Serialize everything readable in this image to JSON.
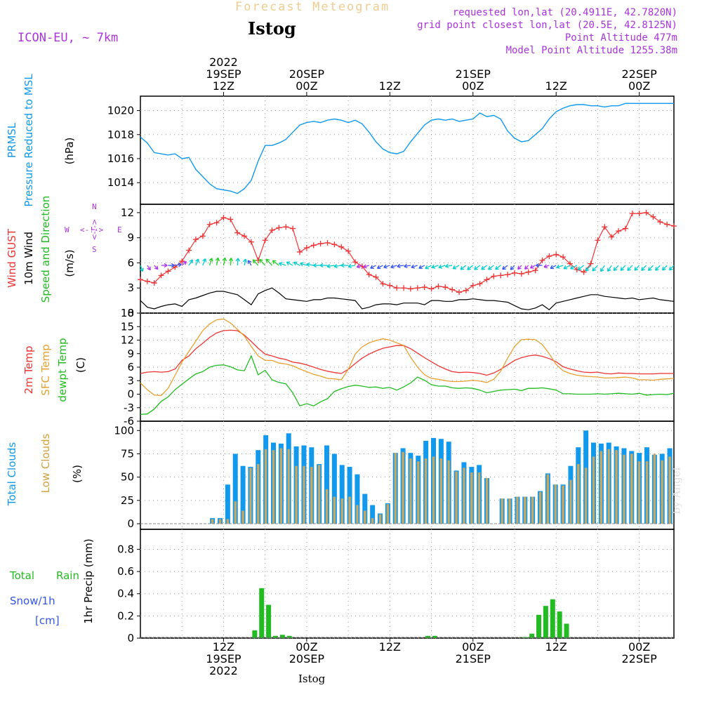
{
  "header": {
    "title": "Forecast Meteogram",
    "location": "Istog",
    "model": "ICON-EU, ~ 7km",
    "requested": "requested lon,lat (20.4911E, 42.7820N)",
    "grid_point": "grid point closest lon,lat (20.5E, 42.8125N)",
    "point_altitude": "Point Altitude 477m",
    "model_altitude": "Model Point Altitude 1255.38m",
    "footer_location": "Istog",
    "watermark": "by Angel"
  },
  "time_axis": {
    "top_labels": [
      {
        "hour": 12,
        "lines": [
          "2022",
          "19SEP",
          "12Z"
        ]
      },
      {
        "hour": 24,
        "lines": [
          "20SEP",
          "00Z"
        ]
      },
      {
        "hour": 36,
        "lines": [
          "12Z"
        ]
      },
      {
        "hour": 48,
        "lines": [
          "21SEP",
          "00Z"
        ]
      },
      {
        "hour": 60,
        "lines": [
          "12Z"
        ]
      },
      {
        "hour": 72,
        "lines": [
          "22SEP",
          "00Z"
        ]
      }
    ],
    "bottom_labels": [
      {
        "hour": 12,
        "lines": [
          "12Z",
          "19SEP",
          "2022"
        ]
      },
      {
        "hour": 24,
        "lines": [
          "00Z",
          "20SEP"
        ]
      },
      {
        "hour": 36,
        "lines": [
          "12Z"
        ]
      },
      {
        "hour": 48,
        "lines": [
          "00Z",
          "21SEP"
        ]
      },
      {
        "hour": 60,
        "lines": [
          "12Z"
        ]
      },
      {
        "hour": 72,
        "lines": [
          "00Z",
          "22SEP"
        ]
      }
    ]
  },
  "panel_labels": {
    "pressure": [
      {
        "text": "PRMSL",
        "color": "#1199ee"
      },
      {
        "text": "Pressure Reduced to MSL",
        "color": "#1199ee"
      },
      {
        "text": "(hPa)",
        "color": "#000000"
      }
    ],
    "wind": [
      {
        "text": "Wind GUST",
        "color": "#ee3333"
      },
      {
        "text": "10m Wind",
        "color": "#000000"
      },
      {
        "text": "Speed and Direction",
        "color": "#22bb22"
      },
      {
        "text": "(m/s)",
        "color": "#000000"
      }
    ],
    "compass": {
      "w": "W",
      "e": "E",
      "n": "N",
      "s": "S",
      "arrows": "<-!->",
      "vert": "<-!->"
    },
    "temp": [
      {
        "text": "2m Temp",
        "color": "#ee3333"
      },
      {
        "text": "SFC Temp",
        "color": "#e8a030"
      },
      {
        "text": "dewpt Temp",
        "color": "#22bb22"
      },
      {
        "text": "(C)",
        "color": "#000000"
      }
    ],
    "clouds": [
      {
        "text": "Total Clouds",
        "color": "#1199ee"
      },
      {
        "text": "Low Clouds",
        "color": "#d4a040"
      },
      {
        "text": "(%)",
        "color": "#000000"
      }
    ],
    "precip": {
      "ylabel": "1hr Precip (mm)",
      "total": "Total",
      "rain": "Rain",
      "snow": "Snow/1h",
      "cm": "[cm]"
    }
  },
  "colors": {
    "pressure": "#1199ee",
    "gust": "#ee3333",
    "wind": "#000000",
    "t2m": "#ee3333",
    "tsfc": "#e8a030",
    "dewpt": "#22bb22",
    "total_clouds": "#1199ee",
    "low_clouds": "#c8a860",
    "rain": "#22bb22"
  },
  "chart_data": [
    {
      "type": "line",
      "panel": "pressure",
      "x": [
        0,
        1,
        2,
        3,
        4,
        5,
        6,
        7,
        8,
        9,
        10,
        11,
        12,
        13,
        14,
        15,
        16,
        17,
        18,
        19,
        20,
        21,
        22,
        23,
        24,
        25,
        26,
        27,
        28,
        29,
        30,
        31,
        32,
        33,
        34,
        35,
        36,
        37,
        38,
        39,
        40,
        41,
        42,
        43,
        44,
        45,
        46,
        47,
        48,
        49,
        50,
        51,
        52,
        53,
        54,
        55,
        56,
        57,
        58,
        59,
        60,
        61,
        62,
        63,
        64,
        65,
        66,
        67,
        68,
        69,
        70,
        71,
        72,
        73,
        74,
        75,
        76,
        77
      ],
      "y": [
        1017.8,
        1017.3,
        1016.5,
        1016.4,
        1016.3,
        1016.4,
        1016.0,
        1016.1,
        1015.1,
        1014.5,
        1013.9,
        1013.5,
        1013.4,
        1013.3,
        1013.1,
        1013.5,
        1014.2,
        1015.8,
        1017.1,
        1017.1,
        1017.3,
        1017.6,
        1018.2,
        1018.8,
        1019.0,
        1019.1,
        1019.0,
        1019.2,
        1019.3,
        1019.2,
        1019.0,
        1019.2,
        1018.9,
        1018.2,
        1017.4,
        1016.8,
        1016.5,
        1016.4,
        1016.6,
        1017.4,
        1018.1,
        1018.8,
        1019.2,
        1019.3,
        1019.2,
        1019.3,
        1019.1,
        1019.2,
        1019.3,
        1019.8,
        1019.5,
        1019.6,
        1019.3,
        1018.3,
        1017.7,
        1017.4,
        1017.5,
        1018.0,
        1018.5,
        1019.3,
        1019.9,
        1020.2,
        1020.4,
        1020.5,
        1020.5,
        1020.4,
        1020.4,
        1020.3,
        1020.4,
        1020.4,
        1020.6,
        1020.6,
        1020.6,
        1020.6,
        1020.6,
        1020.6,
        1020.6,
        1020.6
      ],
      "xlim": [
        0,
        77
      ],
      "ylim": [
        1012.2,
        1021.2
      ],
      "yticks": [
        1014,
        1016,
        1018,
        1020
      ]
    },
    {
      "type": "line",
      "panel": "wind",
      "series": [
        {
          "name": "Wind GUST",
          "values": [
            4.0,
            3.8,
            3.6,
            4.5,
            5.0,
            5.5,
            6.2,
            7.5,
            8.8,
            9.2,
            10.6,
            10.8,
            11.4,
            11.2,
            9.6,
            9.2,
            8.5,
            6.3,
            8.7,
            9.9,
            10.2,
            10.3,
            10.1,
            7.3,
            7.8,
            8.1,
            8.3,
            8.4,
            8.2,
            7.9,
            7.4,
            6.1,
            5.6,
            4.6,
            4.3,
            3.5,
            3.3,
            3.0,
            3.0,
            2.9,
            3.0,
            3.1,
            2.9,
            3.2,
            3.1,
            2.8,
            2.5,
            2.7,
            3.3,
            3.5,
            4.0,
            4.4,
            4.5,
            4.6,
            4.8,
            4.7,
            4.9,
            5.1,
            6.3,
            6.8,
            7.0,
            6.7,
            5.9,
            5.2,
            4.9,
            5.9,
            8.7,
            10.3,
            9.1,
            9.8,
            10.1,
            11.9,
            11.9,
            12.0,
            11.5,
            10.9,
            10.6,
            10.4
          ]
        },
        {
          "name": "10m Wind",
          "values": [
            1.5,
            0.7,
            0.5,
            0.8,
            1.0,
            1.1,
            0.8,
            1.6,
            1.8,
            2.1,
            2.4,
            2.6,
            2.6,
            2.4,
            2.2,
            1.6,
            1.0,
            2.3,
            2.7,
            3.0,
            2.4,
            1.7,
            1.6,
            1.5,
            1.4,
            1.6,
            1.6,
            1.8,
            1.8,
            1.7,
            1.6,
            1.5,
            0.5,
            0.7,
            1.0,
            1.1,
            1.1,
            1.0,
            1.2,
            1.2,
            1.2,
            1.0,
            1.5,
            1.5,
            1.4,
            1.4,
            1.6,
            1.6,
            1.7,
            1.6,
            1.5,
            1.5,
            1.4,
            1.3,
            0.9,
            0.5,
            0.4,
            0.6,
            1.0,
            0.4,
            1.2,
            1.4,
            1.6,
            1.8,
            2.0,
            2.2,
            2.2,
            2.0,
            1.9,
            1.8,
            1.7,
            1.8,
            1.6,
            1.7,
            1.8,
            1.6,
            1.5,
            1.4
          ]
        }
      ],
      "x_start": 0,
      "x_step": 1,
      "xlim": [
        0,
        77
      ],
      "ylim": [
        0,
        13
      ],
      "yticks": [
        0,
        3,
        6,
        9,
        12
      ],
      "arrow_dirs_deg": [
        160,
        150,
        140,
        90,
        90,
        80,
        45,
        30,
        20,
        20,
        15,
        10,
        10,
        5,
        5,
        10,
        -30,
        -40,
        -40,
        -40,
        -50,
        -70,
        -60,
        -60,
        -70,
        -80,
        -90,
        -90,
        -100,
        -100,
        -90,
        -100,
        -110,
        -110,
        -120,
        -120,
        -110,
        -110,
        -100,
        -100,
        -110,
        -120,
        -120,
        -110,
        -110,
        -100,
        -120,
        -130,
        -130,
        -130,
        -130,
        -130,
        -130,
        -130,
        -140,
        -140,
        -140,
        -120,
        -90,
        -110,
        -120,
        -110,
        -120,
        -120,
        -130,
        -140,
        -140,
        -150,
        -150,
        -140,
        -140,
        -140,
        -140,
        -140,
        -140,
        -140,
        -140,
        -140
      ]
    },
    {
      "type": "line",
      "panel": "temperature",
      "series": [
        {
          "name": "2m Temp",
          "values": [
            4.6,
            4.9,
            5.0,
            4.9,
            5.0,
            5.6,
            7.5,
            8.5,
            10.1,
            11.3,
            12.6,
            13.6,
            14.1,
            14.2,
            14.1,
            13.1,
            11.7,
            10.2,
            8.9,
            8.5,
            8.0,
            7.7,
            7.1,
            6.9,
            6.5,
            6.0,
            5.5,
            5.1,
            4.8,
            4.6,
            5.5,
            6.8,
            8.0,
            8.9,
            9.6,
            10.2,
            10.5,
            10.8,
            10.8,
            10.1,
            9.1,
            8.1,
            7.2,
            6.3,
            5.6,
            5.0,
            4.8,
            4.9,
            4.8,
            4.6,
            4.2,
            4.7,
            5.5,
            6.5,
            7.5,
            8.1,
            8.5,
            8.7,
            8.4,
            7.9,
            7.2,
            6.1,
            5.6,
            5.2,
            4.9,
            4.8,
            4.9,
            4.6,
            4.5,
            4.7,
            4.6,
            4.6,
            4.5,
            4.5,
            4.5,
            4.6,
            4.6,
            4.6
          ]
        },
        {
          "name": "SFC Temp",
          "values": [
            2.5,
            1.0,
            -0.2,
            -0.3,
            1.3,
            4.2,
            7.1,
            9.5,
            11.8,
            14.1,
            15.6,
            16.5,
            16.7,
            15.8,
            14.4,
            12.9,
            10.6,
            8.5,
            7.5,
            7.5,
            6.9,
            6.7,
            6.3,
            5.6,
            5.0,
            4.4,
            4.0,
            3.5,
            3.4,
            3.2,
            5.5,
            8.9,
            10.5,
            11.4,
            11.9,
            12.3,
            12.0,
            11.4,
            10.8,
            8.2,
            6.0,
            4.3,
            3.5,
            3.3,
            3.0,
            2.8,
            2.8,
            2.9,
            3.1,
            2.9,
            2.6,
            3.3,
            5.1,
            8.0,
            10.6,
            12.1,
            12.2,
            12.1,
            11.0,
            9.0,
            6.6,
            5.2,
            4.6,
            4.2,
            4.0,
            3.9,
            3.8,
            3.6,
            3.6,
            3.7,
            3.8,
            3.6,
            3.2,
            3.2,
            3.1,
            3.3,
            3.4,
            3.5
          ]
        },
        {
          "name": "dewpt Temp",
          "values": [
            -4.5,
            -4.4,
            -3.3,
            -1.6,
            -0.6,
            1.0,
            2.2,
            3.4,
            4.5,
            5.0,
            6.0,
            6.4,
            6.5,
            6.1,
            5.4,
            5.2,
            8.5,
            4.3,
            5.3,
            3.2,
            2.6,
            2.3,
            0.3,
            -2.6,
            -2.1,
            -2.6,
            -1.7,
            -1.0,
            0.6,
            1.2,
            1.7,
            2.0,
            1.8,
            1.5,
            1.6,
            1.3,
            1.5,
            0.9,
            1.6,
            2.5,
            3.8,
            3.1,
            2.1,
            1.8,
            1.8,
            1.4,
            1.3,
            1.4,
            1.3,
            0.9,
            0.3,
            0.6,
            0.9,
            1.0,
            1.1,
            0.8,
            1.3,
            1.3,
            1.4,
            1.2,
            0.9,
            0.1,
            0.1,
            0.0,
            0.0,
            0.0,
            0.1,
            0.0,
            0.1,
            0.2,
            0.1,
            0.0,
            0.2,
            -0.2,
            -0.1,
            0.0,
            -0.1,
            0.2
          ]
        }
      ],
      "x_start": 0,
      "x_step": 1,
      "xlim": [
        0,
        77
      ],
      "ylim": [
        -6,
        18
      ],
      "yticks": [
        -6,
        -3,
        0,
        3,
        6,
        9,
        12,
        15,
        18
      ]
    },
    {
      "type": "bar",
      "panel": "clouds",
      "series": [
        {
          "name": "Total Clouds",
          "values": [
            0,
            0,
            0,
            0,
            0,
            0,
            0,
            0,
            0,
            6,
            6,
            42,
            75,
            62,
            61,
            79,
            95,
            87,
            86,
            97,
            83,
            84,
            82,
            64,
            84,
            75,
            63,
            61,
            53,
            32,
            20,
            11,
            22,
            76,
            81,
            76,
            73,
            89,
            92,
            91,
            88,
            57,
            66,
            61,
            63,
            49,
            0,
            27,
            27,
            29,
            29,
            29,
            35,
            54,
            42,
            42,
            62,
            82,
            100,
            87,
            86,
            87,
            83,
            81,
            78,
            76,
            82,
            74,
            75,
            81,
            88,
            85,
            84,
            84,
            83,
            85,
            76,
            72
          ]
        },
        {
          "name": "Low Clouds",
          "values": [
            0,
            0,
            0,
            0,
            0,
            0,
            0,
            0,
            0,
            5,
            5,
            5,
            24,
            14,
            60,
            64,
            80,
            79,
            81,
            80,
            62,
            62,
            61,
            63,
            37,
            29,
            27,
            29,
            20,
            14,
            6,
            10,
            21,
            76,
            77,
            70,
            67,
            70,
            72,
            70,
            68,
            56,
            60,
            55,
            55,
            49,
            0,
            27,
            27,
            29,
            29,
            29,
            34,
            53,
            42,
            41,
            47,
            64,
            60,
            72,
            78,
            80,
            79,
            74,
            75,
            67,
            67,
            75,
            68,
            72,
            72,
            73,
            70,
            68,
            65,
            68,
            69,
            60
          ]
        }
      ],
      "x_start": 0,
      "x_step": 1.1,
      "xlim": [
        0,
        77
      ],
      "ylim": [
        -6,
        110
      ],
      "yticks": [
        0,
        25,
        50,
        75,
        100
      ]
    },
    {
      "type": "bar",
      "panel": "precipitation",
      "series": [
        {
          "name": "Total Rain",
          "values": [
            0,
            0,
            0,
            0,
            0,
            0,
            0,
            0,
            0,
            0,
            0,
            0,
            0,
            0,
            0,
            0,
            0.07,
            0.45,
            0.3,
            0.02,
            0.03,
            0.02,
            0,
            0,
            0,
            0,
            0,
            0,
            0,
            0,
            0,
            0,
            0,
            0,
            0,
            0,
            0,
            0,
            0,
            0,
            0,
            0.02,
            0.02,
            0,
            0,
            0,
            0,
            0,
            0,
            0,
            0,
            0,
            0,
            0,
            0,
            0.01,
            0.04,
            0.21,
            0.29,
            0.35,
            0.24,
            0.13,
            0,
            0,
            0,
            0,
            0,
            0,
            0,
            0,
            0,
            0,
            0,
            0,
            0,
            0,
            0,
            0
          ]
        }
      ],
      "x_start": 0,
      "x_step": 1,
      "xlim": [
        0,
        77
      ],
      "ylim": [
        0,
        0.98
      ],
      "yticks": [
        0,
        0.2,
        0.4,
        0.6,
        0.8
      ]
    }
  ]
}
